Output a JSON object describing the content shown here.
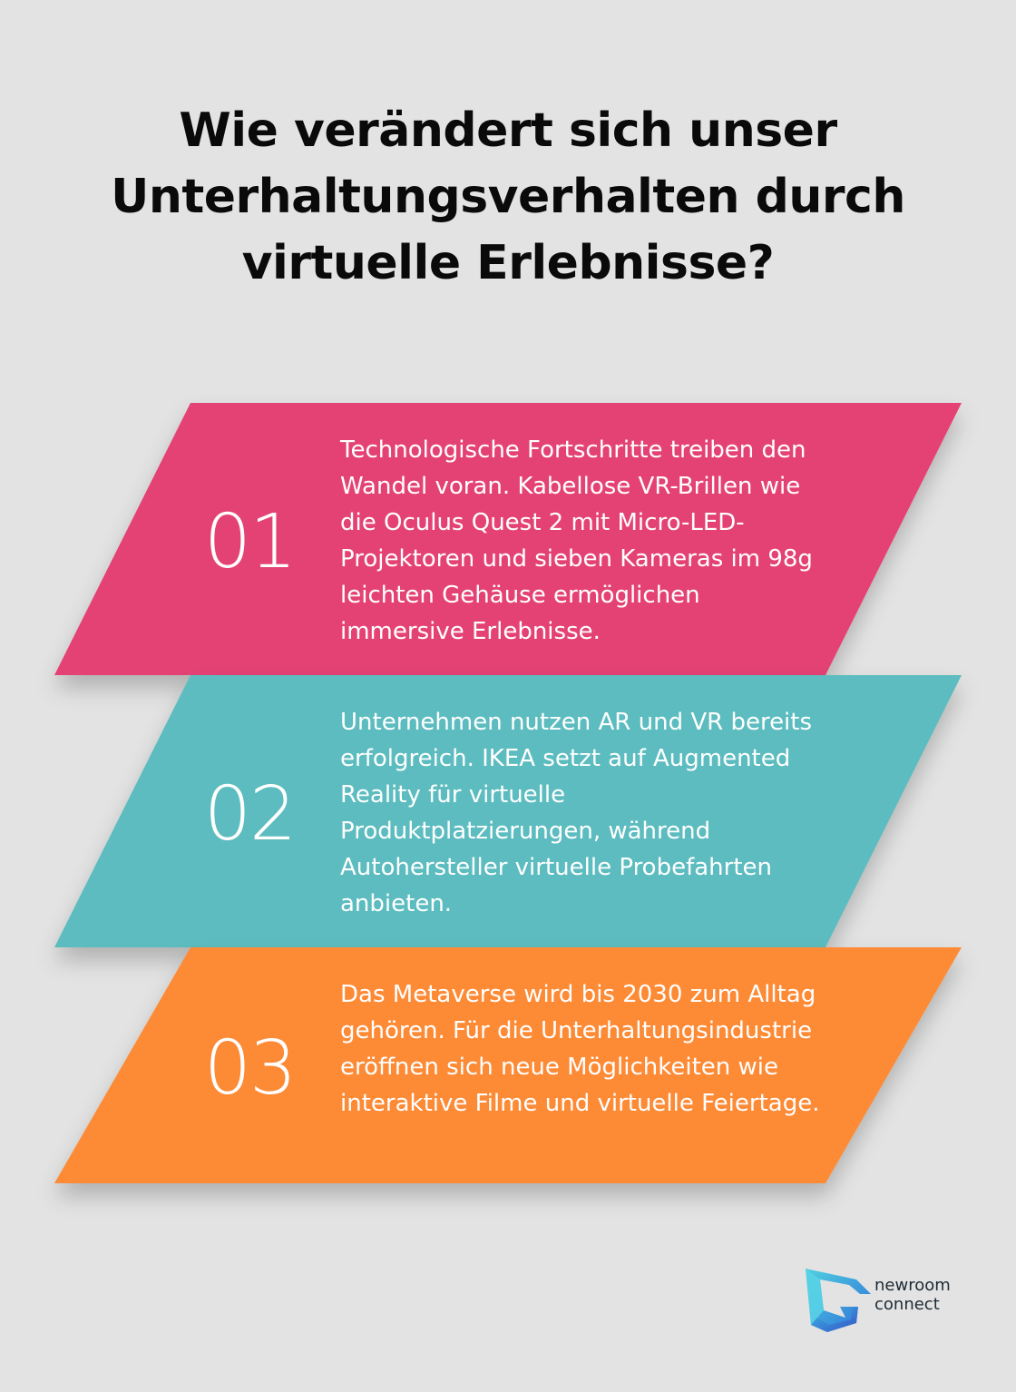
{
  "title": "Wie verändert sich unser Unterhaltungsverhalten durch virtuelle Erlebnisse?",
  "items": [
    {
      "number": "01",
      "text": "Technologische Fortschritte treiben den Wandel voran. Kabellose VR-Brillen wie die Oculus Quest 2 mit Micro-LED-Projektoren und sieben Kameras im 98g leichten Gehäuse ermöglichen immersive Erlebnisse.",
      "color": "#e44274"
    },
    {
      "number": "02",
      "text": "Unternehmen nutzen AR und VR bereits erfolgreich. IKEA setzt auf Augmented Reality für virtuelle Produktplatzierungen, während Autohersteller virtuelle Probefahrten anbieten.",
      "color": "#5bbcbf"
    },
    {
      "number": "03",
      "text": "Das Metaverse wird bis 2030 zum Alltag gehören. Für die Unterhaltungsindustrie eröffnen sich neue Möglichkeiten wie interaktive Filme und virtuelle Feiertage.",
      "color": "#fd8a34"
    }
  ],
  "logo": {
    "line1": "newroom",
    "line2": "connect",
    "icon": "newroom-connect-logo-icon"
  },
  "colors": {
    "background": "#e2e3e2",
    "title": "#0a0a0a",
    "card_text": "#ffffff"
  }
}
